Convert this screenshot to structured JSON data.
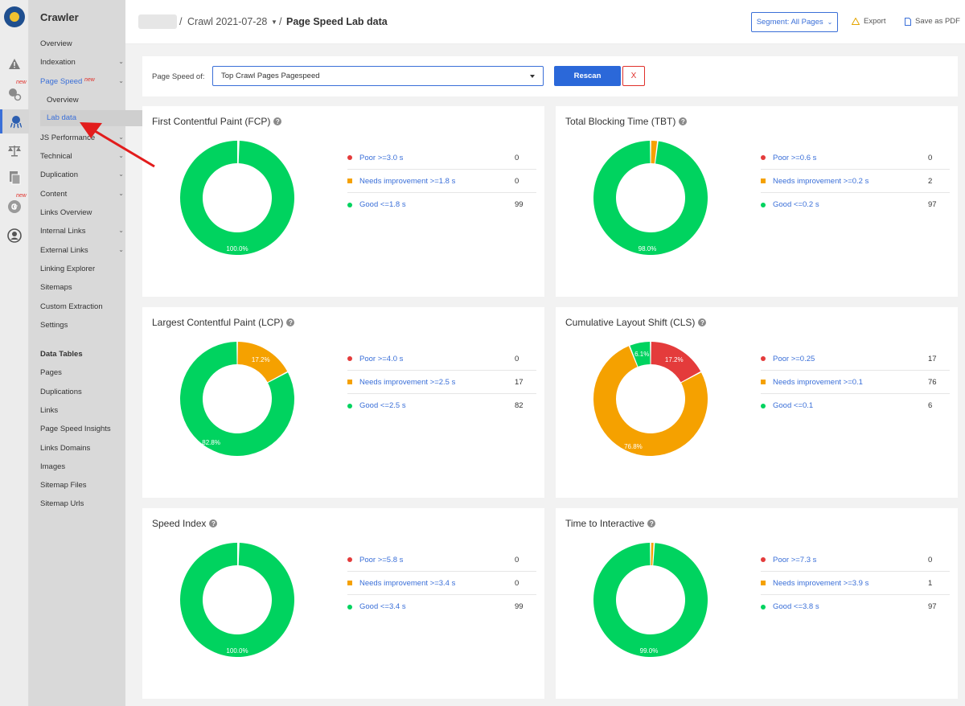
{
  "colors": {
    "accent": "#3a6fd8",
    "poor": "#e43b3b",
    "needs": "#f5a100",
    "good": "#00d35f",
    "arrow": "#e21c1c"
  },
  "sidebar": {
    "brand": "Crawler",
    "new_tag": "new",
    "items": [
      {
        "label": "Overview"
      },
      {
        "label": "Indexation"
      },
      {
        "label": "Page Speed"
      },
      {
        "label": "Overview"
      },
      {
        "label": "Lab data"
      },
      {
        "label": "JS Performance"
      },
      {
        "label": "Technical"
      },
      {
        "label": "Duplication"
      },
      {
        "label": "Content"
      },
      {
        "label": "Links Overview"
      },
      {
        "label": "Internal Links"
      },
      {
        "label": "External Links"
      },
      {
        "label": "Linking Explorer"
      },
      {
        "label": "Sitemaps"
      },
      {
        "label": "Custom Extraction"
      },
      {
        "label": "Settings"
      }
    ],
    "section_title": "Data Tables",
    "tables": [
      {
        "label": "Pages"
      },
      {
        "label": "Duplications"
      },
      {
        "label": "Links"
      },
      {
        "label": "Page Speed Insights"
      },
      {
        "label": "Links Domains"
      },
      {
        "label": "Images"
      },
      {
        "label": "Sitemap Files"
      },
      {
        "label": "Sitemap Urls"
      }
    ]
  },
  "header": {
    "crumb_sep": "/",
    "crawl": "Crawl 2021-07-28",
    "page": "Page Speed Lab data",
    "segment_label": "Segment: All Pages",
    "export_label": "Export",
    "pdf_label": "Save as PDF"
  },
  "selector": {
    "label": "Page Speed of:",
    "value": "Top Crawl Pages Pagespeed",
    "rescan": "Rescan",
    "close": "X"
  },
  "cards": [
    {
      "title": "First Contentful Paint (FCP)",
      "rows": [
        {
          "label": "Poor >=3.0 s",
          "value": 0
        },
        {
          "label": "Needs improvement >=1.8 s",
          "value": 0
        },
        {
          "label": "Good <=1.8 s",
          "value": 99
        }
      ],
      "labels": {
        "poor": "",
        "needs": "",
        "good": "100.0%"
      }
    },
    {
      "title": "Total Blocking Time (TBT)",
      "rows": [
        {
          "label": "Poor >=0.6 s",
          "value": 0
        },
        {
          "label": "Needs improvement >=0.2 s",
          "value": 2
        },
        {
          "label": "Good <=0.2 s",
          "value": 97
        }
      ],
      "labels": {
        "poor": "",
        "needs": "",
        "good": "98.0%"
      }
    },
    {
      "title": "Largest Contentful Paint (LCP)",
      "rows": [
        {
          "label": "Poor >=4.0 s",
          "value": 0
        },
        {
          "label": "Needs improvement >=2.5 s",
          "value": 17
        },
        {
          "label": "Good <=2.5 s",
          "value": 82
        }
      ],
      "labels": {
        "poor": "",
        "needs": "17.2%",
        "good": "82.8%"
      }
    },
    {
      "title": "Cumulative Layout Shift (CLS)",
      "rows": [
        {
          "label": "Poor >=0.25",
          "value": 17
        },
        {
          "label": "Needs improvement >=0.1",
          "value": 76
        },
        {
          "label": "Good <=0.1",
          "value": 6
        }
      ],
      "labels": {
        "poor": "17.2%",
        "needs": "76.8%",
        "good": "6.1%"
      }
    },
    {
      "title": "Speed Index",
      "rows": [
        {
          "label": "Poor >=5.8 s",
          "value": 0
        },
        {
          "label": "Needs improvement >=3.4 s",
          "value": 0
        },
        {
          "label": "Good <=3.4 s",
          "value": 99
        }
      ],
      "labels": {
        "poor": "",
        "needs": "",
        "good": "100.0%"
      }
    },
    {
      "title": "Time to Interactive",
      "rows": [
        {
          "label": "Poor >=7.3 s",
          "value": 0
        },
        {
          "label": "Needs improvement >=3.9 s",
          "value": 1
        },
        {
          "label": "Good <=3.8 s",
          "value": 97
        }
      ],
      "labels": {
        "poor": "",
        "needs": "",
        "good": "99.0%"
      }
    }
  ]
}
